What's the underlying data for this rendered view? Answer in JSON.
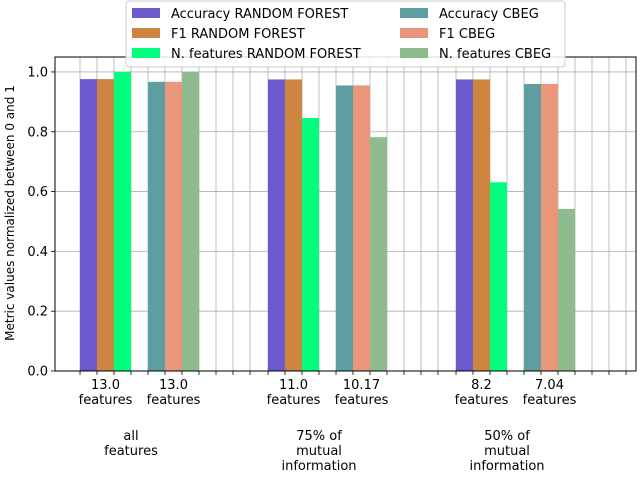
{
  "chart_data": {
    "type": "bar",
    "ylabel": "Metric values normalized between 0 and 1",
    "xlabel": "",
    "ylim": [
      0,
      1.05
    ],
    "yticks": [
      "0.0",
      "0.2",
      "0.4",
      "0.6",
      "0.8",
      "1.0"
    ],
    "grid": true,
    "legend_position": "top-center",
    "groups": [
      {
        "label": [
          "all",
          "features"
        ],
        "subgroups": [
          {
            "label": [
              "13.0",
              "features"
            ]
          },
          {
            "label": [
              "13.0",
              "features"
            ]
          }
        ]
      },
      {
        "label": [
          "75% of",
          "mutual",
          "information"
        ],
        "subgroups": [
          {
            "label": [
              "11.0",
              "features"
            ]
          },
          {
            "label": [
              "10.17",
              "features"
            ]
          }
        ]
      },
      {
        "label": [
          "50% of",
          "mutual",
          "information"
        ],
        "subgroups": [
          {
            "label": [
              "8.2",
              "features"
            ]
          },
          {
            "label": [
              "7.04",
              "features"
            ]
          }
        ]
      }
    ],
    "series": [
      {
        "name": "Accuracy RANDOM FOREST",
        "color": "#6a5acd",
        "subgroup": 0,
        "values": [
          0.976,
          0.975,
          0.975
        ]
      },
      {
        "name": "F1 RANDOM FOREST",
        "color": "#cd853f",
        "subgroup": 0,
        "values": [
          0.976,
          0.975,
          0.975
        ]
      },
      {
        "name": "N. features RANDOM FOREST",
        "color": "#00ff7f",
        "subgroup": 0,
        "values": [
          1.0,
          0.846,
          0.631
        ]
      },
      {
        "name": "Accuracy CBEG",
        "color": "#5f9ea0",
        "subgroup": 1,
        "values": [
          0.967,
          0.955,
          0.96
        ]
      },
      {
        "name": "F1 CBEG",
        "color": "#e9967a",
        "subgroup": 1,
        "values": [
          0.967,
          0.955,
          0.96
        ]
      },
      {
        "name": "N. features CBEG",
        "color": "#8fbc8f",
        "subgroup": 1,
        "values": [
          1.0,
          0.782,
          0.542
        ]
      }
    ]
  }
}
